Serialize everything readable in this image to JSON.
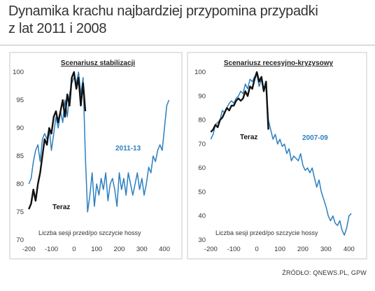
{
  "title_line1": "Dynamika krachu najbardziej przypomina przypadki",
  "title_line2": "z lat 2011 i 2008",
  "source": "ŹRÓDŁO: QNEWS.PL, GPW",
  "colors": {
    "current": "#111111",
    "historical": "#2b7fbf"
  },
  "chart_data": [
    {
      "type": "line",
      "title": "Scenariusz stabilizacji",
      "xlabel": "Liczba sesji przed/po szczycie hossy",
      "xlim": [
        -210,
        440
      ],
      "ylim": [
        70,
        100
      ],
      "xticks": [
        -200,
        -100,
        0,
        100,
        200,
        300,
        400
      ],
      "yticks": [
        70,
        75,
        80,
        85,
        90,
        95,
        100
      ],
      "series": [
        {
          "name": "Teraz",
          "color": "#111111",
          "x": [
            -200,
            -190,
            -180,
            -170,
            -160,
            -150,
            -140,
            -130,
            -120,
            -110,
            -100,
            -90,
            -80,
            -70,
            -60,
            -50,
            -40,
            -30,
            -20,
            -10,
            0,
            10,
            20,
            30,
            40,
            50
          ],
          "y": [
            75.5,
            76.5,
            79,
            77,
            80,
            82,
            85,
            88,
            87,
            90,
            89,
            92,
            93,
            91,
            93,
            95,
            92,
            96,
            94,
            99,
            100,
            97,
            99,
            94,
            98,
            93
          ]
        },
        {
          "name": "2011-13",
          "color": "#2b7fbf",
          "x": [
            -200,
            -190,
            -180,
            -170,
            -160,
            -150,
            -140,
            -130,
            -120,
            -110,
            -100,
            -90,
            -80,
            -70,
            -60,
            -50,
            -40,
            -30,
            -20,
            -10,
            0,
            10,
            20,
            30,
            40,
            50,
            60,
            70,
            80,
            90,
            100,
            110,
            120,
            130,
            140,
            150,
            160,
            170,
            180,
            190,
            200,
            210,
            220,
            230,
            240,
            250,
            260,
            270,
            280,
            290,
            300,
            310,
            320,
            330,
            340,
            350,
            360,
            370,
            380,
            390,
            400,
            410,
            420
          ],
          "y": [
            80,
            81,
            84,
            86,
            87,
            84,
            88,
            89,
            88,
            90,
            86,
            89,
            92,
            90,
            93,
            91,
            95,
            92,
            96,
            98,
            99,
            98,
            100,
            96,
            99,
            85,
            75,
            78,
            82,
            76,
            80,
            78,
            81,
            79,
            82,
            77,
            80,
            81,
            79,
            76,
            82,
            79,
            81,
            78,
            82,
            80,
            78,
            80,
            82,
            79,
            81,
            78,
            80,
            83,
            82,
            85,
            84,
            86,
            87,
            86,
            90,
            94,
            95
          ]
        }
      ],
      "annotations": [
        {
          "text": "2011-13",
          "series": "2011-13"
        },
        {
          "text": "Teraz",
          "series": "Teraz"
        }
      ]
    },
    {
      "type": "line",
      "title": "Scenariusz recesyjno-kryzysowy",
      "xlabel": "Liczba sesji przed/po szczycie hossy",
      "xlim": [
        -210,
        440
      ],
      "ylim": [
        30,
        100
      ],
      "xticks": [
        -200,
        -100,
        0,
        100,
        200,
        300,
        400
      ],
      "yticks": [
        30,
        40,
        50,
        60,
        70,
        80,
        90,
        100
      ],
      "series": [
        {
          "name": "Teraz",
          "color": "#111111",
          "x": [
            -200,
            -190,
            -180,
            -170,
            -160,
            -150,
            -140,
            -130,
            -120,
            -110,
            -100,
            -90,
            -80,
            -70,
            -60,
            -50,
            -40,
            -30,
            -20,
            -10,
            0,
            10,
            20,
            30,
            40,
            50
          ],
          "y": [
            75,
            76,
            78,
            77,
            80,
            81,
            83,
            85,
            84,
            86,
            86,
            88,
            89,
            88,
            89,
            92,
            90,
            94,
            93,
            97,
            100,
            96,
            98,
            92,
            96,
            76
          ]
        },
        {
          "name": "2007-09",
          "color": "#2b7fbf",
          "x": [
            -200,
            -190,
            -180,
            -170,
            -160,
            -150,
            -140,
            -130,
            -120,
            -110,
            -100,
            -90,
            -80,
            -70,
            -60,
            -50,
            -40,
            -30,
            -20,
            -10,
            0,
            10,
            20,
            30,
            40,
            50,
            60,
            70,
            80,
            90,
            100,
            110,
            120,
            130,
            140,
            150,
            160,
            170,
            180,
            190,
            200,
            210,
            220,
            230,
            240,
            250,
            260,
            270,
            280,
            290,
            300,
            310,
            320,
            330,
            340,
            350,
            360,
            370,
            380,
            390,
            400,
            410
          ],
          "y": [
            72,
            74,
            78,
            79,
            80,
            84,
            83,
            85,
            87,
            88,
            87,
            89,
            90,
            92,
            91,
            95,
            93,
            97,
            96,
            98,
            99,
            94,
            97,
            92,
            95,
            80,
            76,
            72,
            74,
            70,
            72,
            69,
            70,
            66,
            68,
            63,
            65,
            64,
            63,
            66,
            61,
            59,
            60,
            58,
            60,
            56,
            52,
            55,
            50,
            47,
            44,
            40,
            38,
            40,
            37,
            36,
            38,
            34,
            32,
            35,
            40,
            41
          ]
        }
      ],
      "annotations": [
        {
          "text": "2007-09",
          "series": "2007-09"
        },
        {
          "text": "Teraz",
          "series": "Teraz"
        }
      ]
    }
  ]
}
